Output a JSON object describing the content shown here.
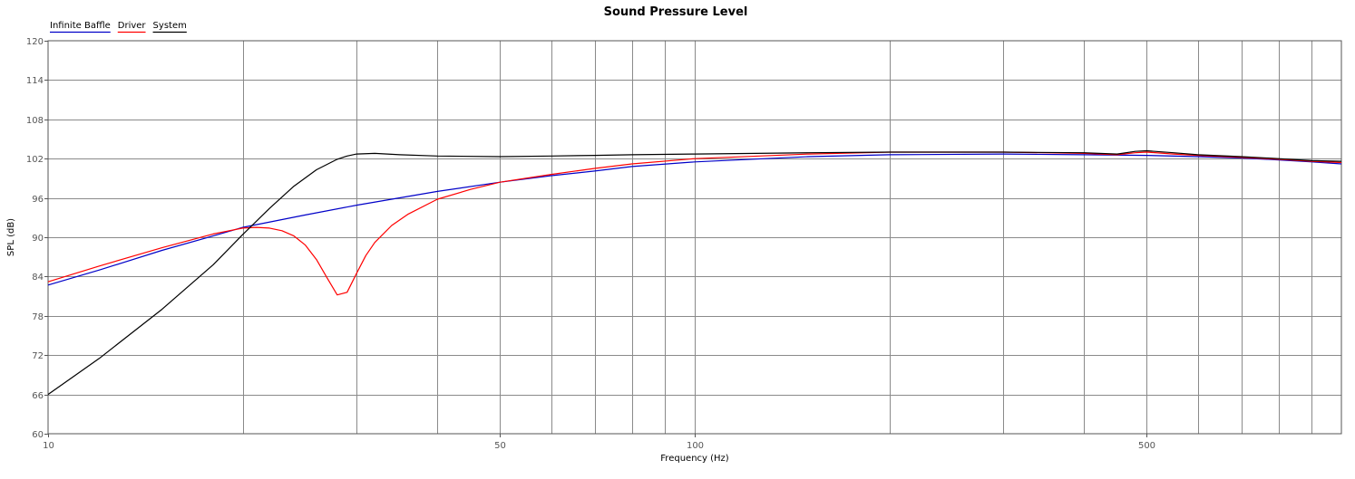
{
  "chart_data": {
    "type": "line",
    "title": "Sound Pressure Level",
    "xlabel": "Frequency (Hz)",
    "ylabel": "SPL (dB)",
    "x_scale": "log",
    "xlim": [
      10,
      1000
    ],
    "ylim": [
      60,
      120
    ],
    "x_tick_labels": [
      "10",
      "50",
      "100",
      "500"
    ],
    "x_tick_values": [
      10,
      50,
      100,
      500
    ],
    "x_minor_gridlines": [
      20,
      30,
      40,
      60,
      70,
      80,
      90,
      200,
      300,
      400,
      600,
      700,
      800,
      900
    ],
    "y_ticks": [
      60,
      66,
      72,
      78,
      84,
      90,
      96,
      102,
      108,
      114,
      120
    ],
    "grid": true,
    "legend_position": "top-left",
    "series": [
      {
        "name": "Infinite Baffle",
        "color": "#0000c8",
        "x": [
          10,
          12,
          15,
          18,
          20,
          25,
          30,
          40,
          50,
          60,
          70,
          80,
          100,
          150,
          200,
          300,
          400,
          500,
          600,
          700,
          800,
          900,
          1000
        ],
        "y": [
          82.7,
          85.0,
          88.0,
          90.2,
          91.5,
          93.4,
          94.9,
          97.0,
          98.4,
          99.4,
          100.1,
          100.8,
          101.5,
          102.3,
          102.6,
          102.7,
          102.6,
          102.5,
          102.3,
          102.1,
          101.8,
          101.5,
          101.2
        ]
      },
      {
        "name": "Driver",
        "color": "#ff0000",
        "x": [
          10,
          12,
          15,
          18,
          20,
          21,
          22,
          23,
          24,
          25,
          26,
          27,
          28,
          29,
          30,
          31,
          32,
          34,
          36,
          40,
          45,
          50,
          60,
          70,
          80,
          100,
          150,
          200,
          300,
          400,
          450,
          480,
          500,
          550,
          600,
          700,
          800,
          900,
          1000
        ],
        "y": [
          83.2,
          85.6,
          88.4,
          90.5,
          91.4,
          91.5,
          91.4,
          91.0,
          90.2,
          88.8,
          86.6,
          83.8,
          81.2,
          81.6,
          84.5,
          87.2,
          89.2,
          91.8,
          93.5,
          95.8,
          97.3,
          98.4,
          99.6,
          100.5,
          101.2,
          102.0,
          102.7,
          103.0,
          103.0,
          102.8,
          102.6,
          102.9,
          103.0,
          102.7,
          102.5,
          102.2,
          101.9,
          101.6,
          101.4
        ]
      },
      {
        "name": "System",
        "color": "#000000",
        "x": [
          10,
          12,
          15,
          18,
          20,
          22,
          24,
          26,
          28,
          29,
          30,
          32,
          35,
          40,
          50,
          60,
          70,
          80,
          100,
          150,
          200,
          300,
          400,
          450,
          480,
          500,
          550,
          600,
          700,
          800,
          900,
          1000
        ],
        "y": [
          66.0,
          71.5,
          79.0,
          85.8,
          90.4,
          94.4,
          97.8,
          100.3,
          101.9,
          102.4,
          102.7,
          102.8,
          102.6,
          102.4,
          102.3,
          102.4,
          102.5,
          102.6,
          102.7,
          102.9,
          103.0,
          103.0,
          102.9,
          102.7,
          103.1,
          103.2,
          102.9,
          102.6,
          102.3,
          102.0,
          101.7,
          101.6
        ]
      }
    ]
  }
}
